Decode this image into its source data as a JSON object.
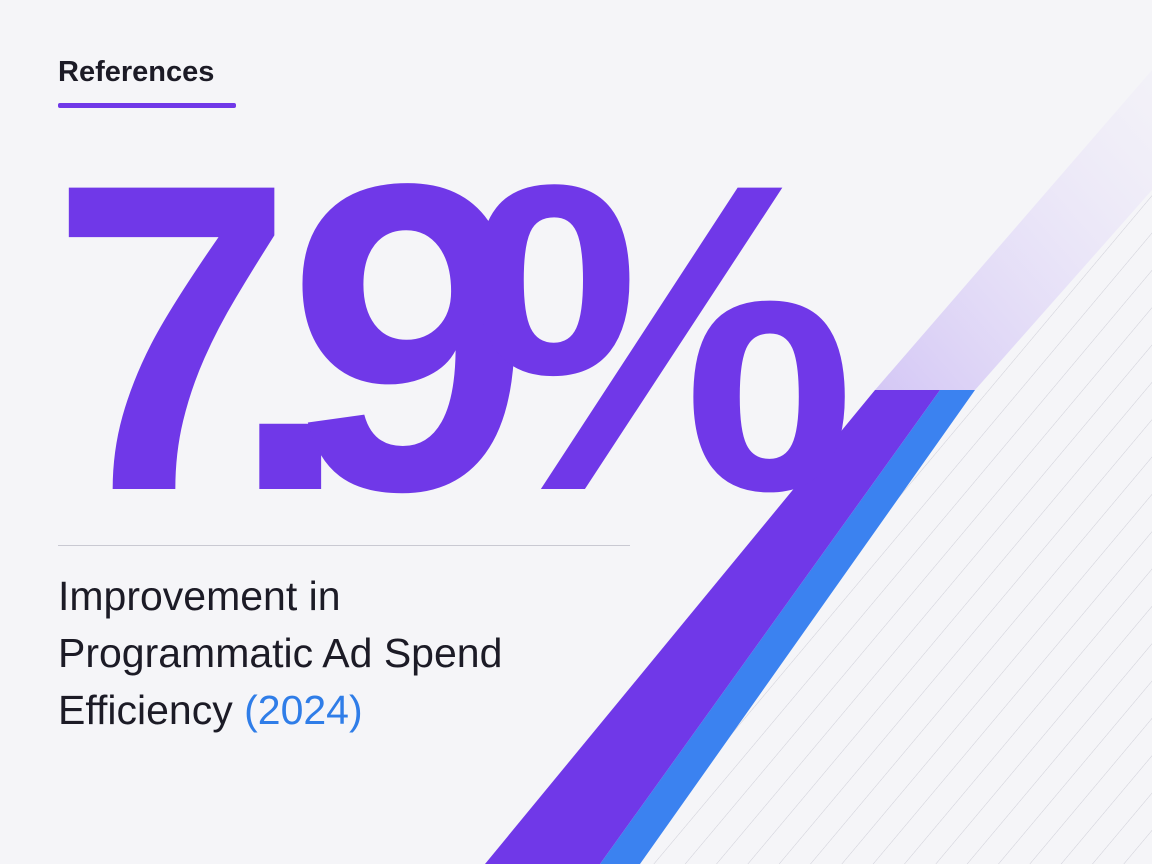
{
  "header": {
    "label": "References"
  },
  "stat": {
    "value": "7.9%"
  },
  "description": {
    "lines": [
      "Improvement in",
      "Programmatic Ad Spend",
      "Efficiency"
    ],
    "year": "(2024)"
  }
}
